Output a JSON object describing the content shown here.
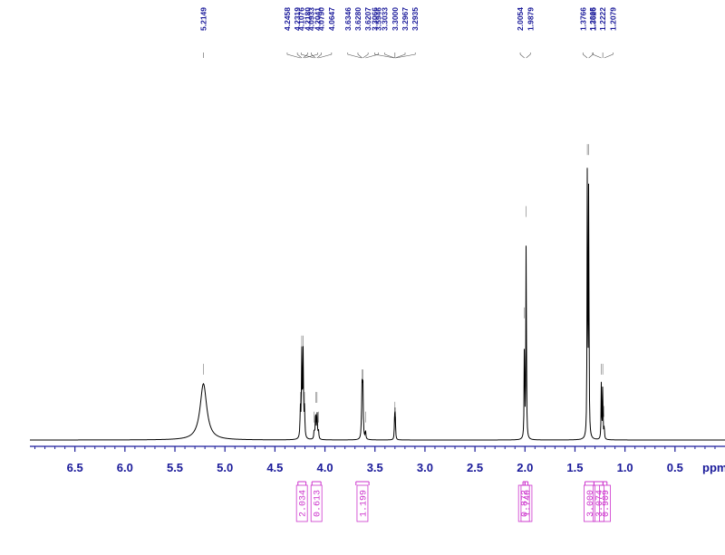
{
  "chart_data": {
    "type": "line",
    "x_unit": "ppm",
    "xlim": [
      6.95,
      0.0
    ],
    "x_major_ticks": [
      {
        "value": 6.5,
        "label": "6.5"
      },
      {
        "value": 6.0,
        "label": "6.0"
      },
      {
        "value": 5.5,
        "label": "5.5"
      },
      {
        "value": 5.0,
        "label": "5.0"
      },
      {
        "value": 4.5,
        "label": "4.5"
      },
      {
        "value": 4.0,
        "label": "4.0"
      },
      {
        "value": 3.5,
        "label": "3.5"
      },
      {
        "value": 3.0,
        "label": "3.0"
      },
      {
        "value": 2.5,
        "label": "2.5"
      },
      {
        "value": 2.0,
        "label": "2.0"
      },
      {
        "value": 1.5,
        "label": "1.5"
      },
      {
        "value": 1.0,
        "label": "1.0"
      },
      {
        "value": 0.5,
        "label": "0.5"
      }
    ],
    "x_minor_step": 0.1,
    "peaks": [
      {
        "ppm": 5.2149,
        "height": 0.2,
        "width": 0.04
      },
      {
        "ppm": 4.2458,
        "height": 0.1,
        "width": 0.004
      },
      {
        "ppm": 4.2319,
        "height": 0.3,
        "width": 0.004
      },
      {
        "ppm": 4.218,
        "height": 0.3,
        "width": 0.004
      },
      {
        "ppm": 4.2041,
        "height": 0.1,
        "width": 0.004
      },
      {
        "ppm": 4.1076,
        "height": 0.03,
        "width": 0.004
      },
      {
        "ppm": 4.0933,
        "height": 0.1,
        "width": 0.004
      },
      {
        "ppm": 4.079,
        "height": 0.1,
        "width": 0.004
      },
      {
        "ppm": 4.0647,
        "height": 0.03,
        "width": 0.004
      },
      {
        "ppm": 3.6346,
        "height": 0.04,
        "width": 0.004
      },
      {
        "ppm": 3.628,
        "height": 0.18,
        "width": 0.004
      },
      {
        "ppm": 3.6207,
        "height": 0.18,
        "width": 0.004
      },
      {
        "ppm": 3.5946,
        "height": 0.03,
        "width": 0.004
      },
      {
        "ppm": 3.3066,
        "height": 0.012,
        "width": 0.003
      },
      {
        "ppm": 3.3033,
        "height": 0.045,
        "width": 0.003
      },
      {
        "ppm": 3.3,
        "height": 0.065,
        "width": 0.003
      },
      {
        "ppm": 3.2967,
        "height": 0.045,
        "width": 0.003
      },
      {
        "ppm": 3.2935,
        "height": 0.012,
        "width": 0.003
      },
      {
        "ppm": 2.0054,
        "height": 0.4,
        "width": 0.003
      },
      {
        "ppm": 1.9879,
        "height": 0.76,
        "width": 0.003
      },
      {
        "ppm": 1.3766,
        "height": 0.98,
        "width": 0.003
      },
      {
        "ppm": 1.3626,
        "height": 0.98,
        "width": 0.003
      },
      {
        "ppm": 1.2365,
        "height": 0.2,
        "width": 0.003
      },
      {
        "ppm": 1.2222,
        "height": 0.2,
        "width": 0.003
      },
      {
        "ppm": 1.2079,
        "height": 0.05,
        "width": 0.003
      }
    ],
    "peak_labels": [
      "5.2149",
      "4.2458",
      "4.2319",
      "4.2180",
      "4.2041",
      "4.1076",
      "4.0933",
      "4.0790",
      "4.0647",
      "3.6346",
      "3.6280",
      "3.6207",
      "3.5946",
      "3.3066",
      "3.3033",
      "3.3000",
      "3.2967",
      "3.2935",
      "2.0054",
      "1.9879",
      "1.3766",
      "1.3626",
      "1.2365",
      "1.2222",
      "1.2079"
    ],
    "integrals": [
      {
        "from": 4.27,
        "to": 4.19,
        "value": "2.034"
      },
      {
        "from": 4.13,
        "to": 4.04,
        "value": "0.613"
      },
      {
        "from": 3.69,
        "to": 3.56,
        "value": "1.199"
      },
      {
        "from": 2.02,
        "to": 2.0,
        "value": "0.872"
      },
      {
        "from": 2.0,
        "to": 1.97,
        "value": "1.740"
      },
      {
        "from": 1.4,
        "to": 1.31,
        "value": "3.000"
      },
      {
        "from": 1.31,
        "to": 1.22,
        "value": "3.074"
      },
      {
        "from": 1.22,
        "to": 1.18,
        "value": "0.909"
      }
    ]
  },
  "colors": {
    "spectrum": "#000000",
    "axis": "#1a1a9a",
    "labels": "#1a1a9a",
    "integrals": "#cc33cc",
    "leader_lines": "#555555"
  }
}
